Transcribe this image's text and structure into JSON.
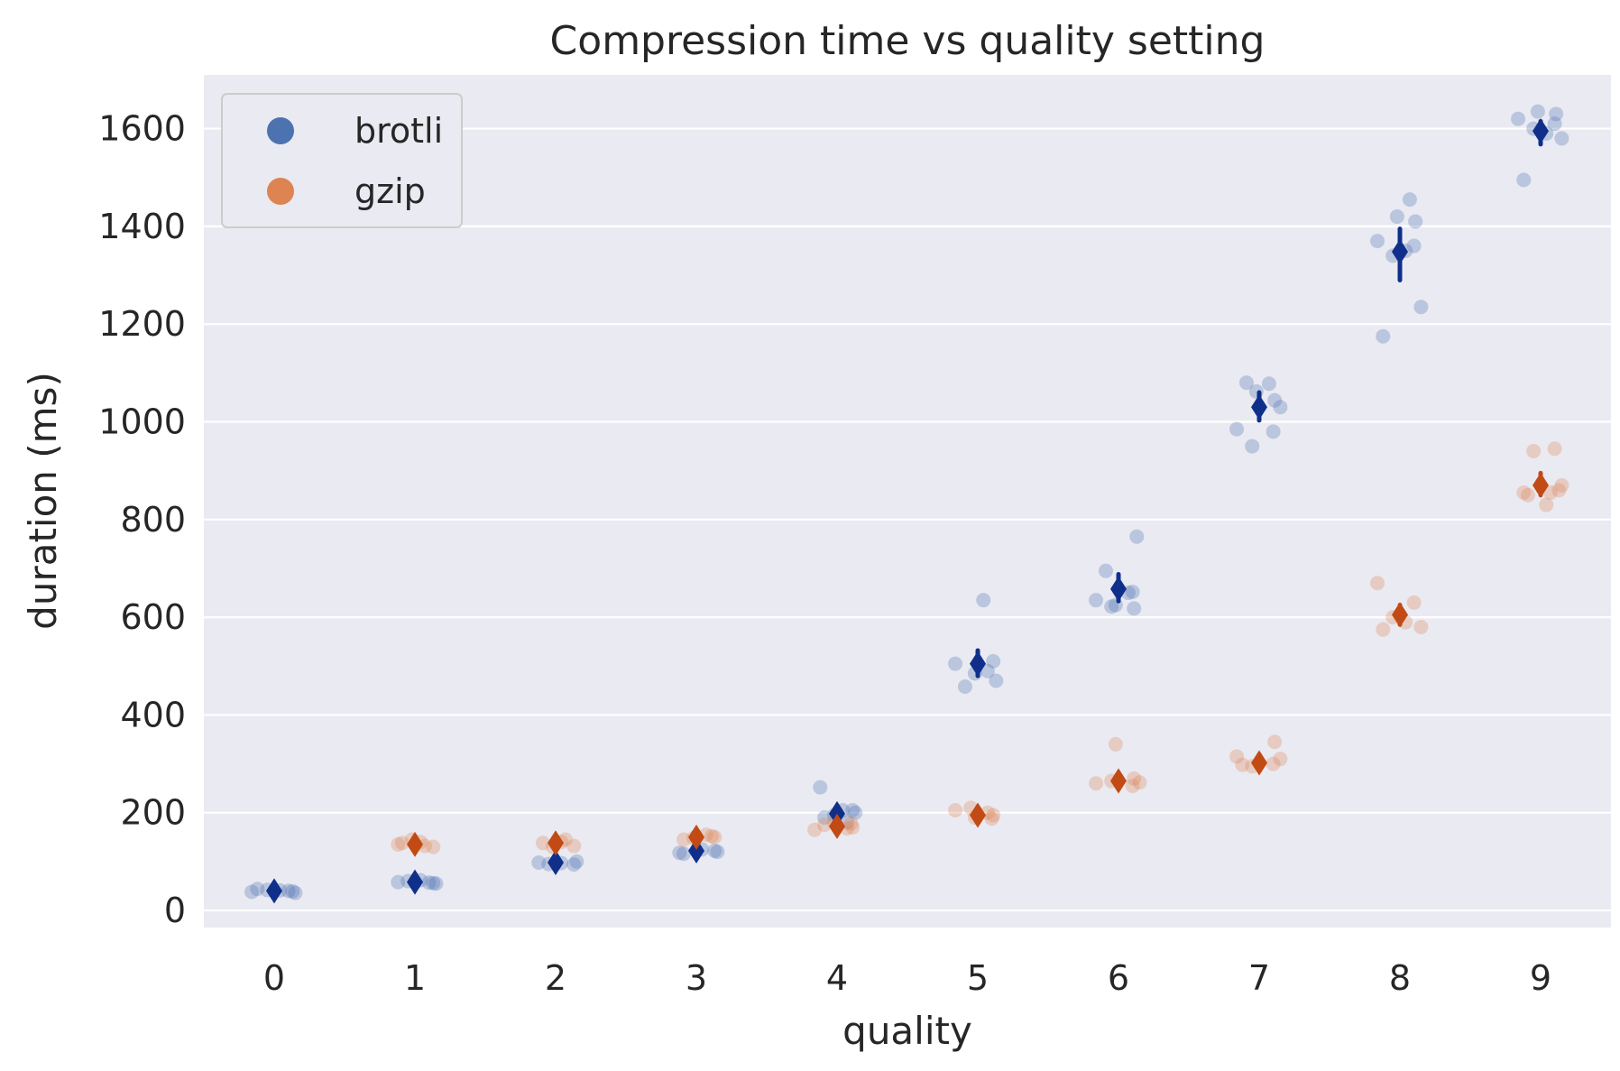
{
  "chart_data": {
    "type": "scatter",
    "title": "Compression time vs quality setting",
    "xlabel": "quality",
    "ylabel": "duration (ms)",
    "categories": [
      "0",
      "1",
      "2",
      "3",
      "4",
      "5",
      "6",
      "7",
      "8",
      "9"
    ],
    "yticks": [
      0,
      200,
      400,
      600,
      800,
      1000,
      1200,
      1400,
      1600
    ],
    "ylim": [
      -35,
      1710
    ],
    "grid": true,
    "legend": "top-left",
    "series": [
      {
        "name": "brotli",
        "color": "#4c72b0",
        "mean_color": "#0f2f8a",
        "means": [
          40,
          58,
          98,
          122,
          198,
          505,
          658,
          1030,
          1348,
          1595
        ],
        "ci": [
          [
            28,
            50
          ],
          [
            48,
            68
          ],
          [
            86,
            112
          ],
          [
            110,
            132
          ],
          [
            188,
            210
          ],
          [
            480,
            532
          ],
          [
            633,
            688
          ],
          [
            1003,
            1060
          ],
          [
            1290,
            1395
          ],
          [
            1568,
            1615
          ]
        ],
        "points": [
          [
            38,
            40,
            42,
            36,
            44,
            41,
            39
          ],
          [
            57,
            60,
            55,
            58,
            62,
            56
          ],
          [
            95,
            100,
            98,
            97,
            94
          ],
          [
            120,
            118,
            125,
            122,
            116
          ],
          [
            252,
            205,
            200,
            190,
            180,
            195,
            205
          ],
          [
            635,
            470,
            458,
            490,
            485,
            510,
            505
          ],
          [
            765,
            695,
            650,
            625,
            618,
            635,
            652,
            622
          ],
          [
            1080,
            1078,
            1062,
            1044,
            985,
            980,
            950,
            1030
          ],
          [
            1455,
            1420,
            1410,
            1370,
            1360,
            1340,
            1235,
            1175,
            1350
          ],
          [
            1635,
            1630,
            1620,
            1610,
            1600,
            1580,
            1495,
            1590
          ]
        ]
      },
      {
        "name": "gzip",
        "color": "#dd8452",
        "mean_color": "#c24a14",
        "means": [
          null,
          135,
          138,
          150,
          172,
          195,
          265,
          302,
          605,
          870
        ],
        "ci": [
          null,
          [
            122,
            148
          ],
          [
            126,
            150
          ],
          [
            138,
            162
          ],
          [
            160,
            184
          ],
          [
            182,
            208
          ],
          [
            250,
            282
          ],
          [
            288,
            318
          ],
          [
            585,
            625
          ],
          [
            850,
            895
          ]
        ],
        "points": [
          [],
          [
            135,
            140,
            130,
            138,
            132,
            145
          ],
          [
            140,
            132,
            138,
            145,
            130
          ],
          [
            150,
            145,
            155,
            148,
            152
          ],
          [
            175,
            168,
            180,
            170,
            165,
            178
          ],
          [
            200,
            190,
            195,
            205,
            188,
            210
          ],
          [
            340,
            270,
            260,
            255,
            265,
            262
          ],
          [
            345,
            315,
            300,
            295,
            310,
            298
          ],
          [
            670,
            630,
            600,
            580,
            575,
            590
          ],
          [
            945,
            940,
            870,
            855,
            830,
            860,
            850,
            855
          ]
        ]
      }
    ]
  }
}
